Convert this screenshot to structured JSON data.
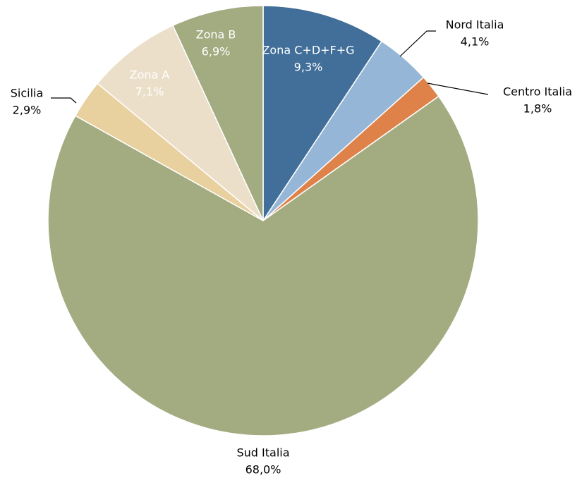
{
  "chart_data": {
    "type": "pie",
    "categories": [
      "Zona C+D+F+G",
      "Nord Italia",
      "Centro Italia",
      "Sud Italia",
      "Sicilia",
      "Zona A",
      "Zona B"
    ],
    "values": [
      9.3,
      4.1,
      1.8,
      68.0,
      2.9,
      7.1,
      6.9
    ],
    "value_labels": [
      "9,3%",
      "4,1%",
      "1,8%",
      "68,0%",
      "2,9%",
      "7,1%",
      "6,9%"
    ],
    "colors": [
      "#416f99",
      "#95b6d6",
      "#de8249",
      "#a3ab80",
      "#e8d09f",
      "#ebdfca",
      "#a3ab80"
    ]
  }
}
